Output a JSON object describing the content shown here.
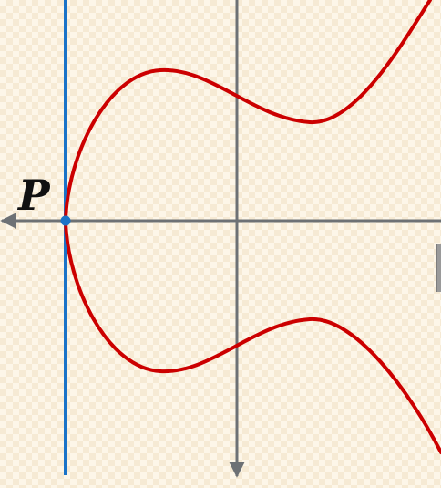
{
  "diagram": {
    "point_label": "P",
    "colors": {
      "curve": "#cc0000",
      "tangent_line": "#1a73c8",
      "point": "#1a73c8",
      "axes": "#6d7175",
      "label": "#111111"
    },
    "elements": {
      "curve": "elliptic-curve",
      "tangent": "vertical-tangent-line",
      "axes": [
        "x-axis",
        "y-axis"
      ]
    }
  }
}
